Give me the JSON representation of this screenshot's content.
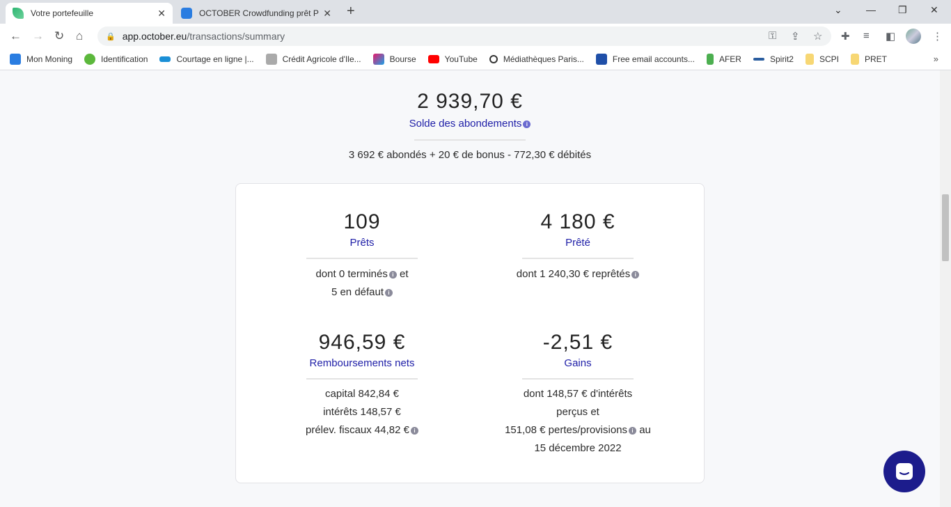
{
  "browser": {
    "tabs": [
      {
        "title": "Votre portefeuille",
        "active": true
      },
      {
        "title": "OCTOBER Crowdfunding prêt PME",
        "active": false
      }
    ],
    "url_host": "app.october.eu",
    "url_path": "/transactions/summary",
    "bookmarks": [
      {
        "label": "Mon Moning",
        "color": "#2a7de1"
      },
      {
        "label": "Identification",
        "color": "#5cb83c"
      },
      {
        "label": "Courtage en ligne |...",
        "color": "#1a8fd6"
      },
      {
        "label": "Crédit Agricole d'Ile...",
        "color": "#888888"
      },
      {
        "label": "Bourse",
        "color": "#e8196b"
      },
      {
        "label": "YouTube",
        "color": "#ff0000"
      },
      {
        "label": "Médiathèques Paris...",
        "color": "#333333"
      },
      {
        "label": "Free email accounts...",
        "color": "#1f4fa8"
      },
      {
        "label": "AFER",
        "color": "#4caf50"
      },
      {
        "label": "Spirit2",
        "color": "#2a5d9f"
      },
      {
        "label": "SCPI",
        "color": "#f7d774"
      },
      {
        "label": "PRET",
        "color": "#f7d774"
      }
    ]
  },
  "summary": {
    "balance": "2 939,70 €",
    "balance_label": "Solde des abondements",
    "breakdown": "3 692 € abondés + 20 € de bonus - 772,30 € débités"
  },
  "stats": {
    "loans": {
      "value": "109",
      "label": "Prêts",
      "line1": "dont 0 terminés",
      "line1_suffix": "et",
      "line2": "5 en défaut"
    },
    "lent": {
      "value": "4 180 €",
      "label": "Prêté",
      "line1": "dont 1 240,30 € reprêtés"
    },
    "repayments": {
      "value": "946,59 €",
      "label": "Remboursements nets",
      "line1": "capital 842,84 €",
      "line2": "intérêts 148,57 €",
      "line3": "prélev. fiscaux 44,82 €"
    },
    "gains": {
      "value": "-2,51 €",
      "label": "Gains",
      "line1": "dont 148,57 € d'intérêts",
      "line2": "perçus et",
      "line3": "151,08 € pertes/provisions",
      "line3_suffix": "au",
      "line4": "15 décembre 2022"
    }
  },
  "colors": {
    "accent": "#2020a8",
    "chat_button": "#1c1c8c"
  }
}
